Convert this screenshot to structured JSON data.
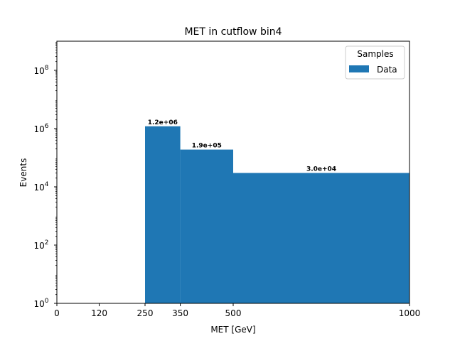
{
  "chart_data": {
    "type": "bar",
    "title": "MET in cutflow bin4",
    "xlabel": "MET [GeV]",
    "ylabel": "Events",
    "y_scale": "log",
    "xlim": [
      0,
      1000
    ],
    "ylim": [
      1,
      1000000000
    ],
    "x_ticks": [
      "0",
      "120",
      "250",
      "350",
      "500",
      "1000"
    ],
    "x_tick_values": [
      0,
      120,
      250,
      350,
      500,
      1000
    ],
    "y_ticks": [
      {
        "base": "10",
        "exp": "0",
        "value": 1
      },
      {
        "base": "10",
        "exp": "2",
        "value": 100
      },
      {
        "base": "10",
        "exp": "4",
        "value": 10000
      },
      {
        "base": "10",
        "exp": "6",
        "value": 1000000
      },
      {
        "base": "10",
        "exp": "8",
        "value": 100000000
      }
    ],
    "bins": [
      {
        "x0": 0,
        "x1": 120,
        "value": 0,
        "label": ""
      },
      {
        "x0": 120,
        "x1": 250,
        "value": 0,
        "label": ""
      },
      {
        "x0": 250,
        "x1": 350,
        "value": 1200000,
        "label": "1.2e+06"
      },
      {
        "x0": 350,
        "x1": 500,
        "value": 190000,
        "label": "1.9e+05"
      },
      {
        "x0": 500,
        "x1": 1000,
        "value": 30000,
        "label": "3.0e+04"
      }
    ],
    "series": [
      {
        "name": "Data",
        "color": "#1f77b4"
      }
    ],
    "legend": {
      "title": "Samples",
      "position": "top-right"
    },
    "grid": false
  }
}
